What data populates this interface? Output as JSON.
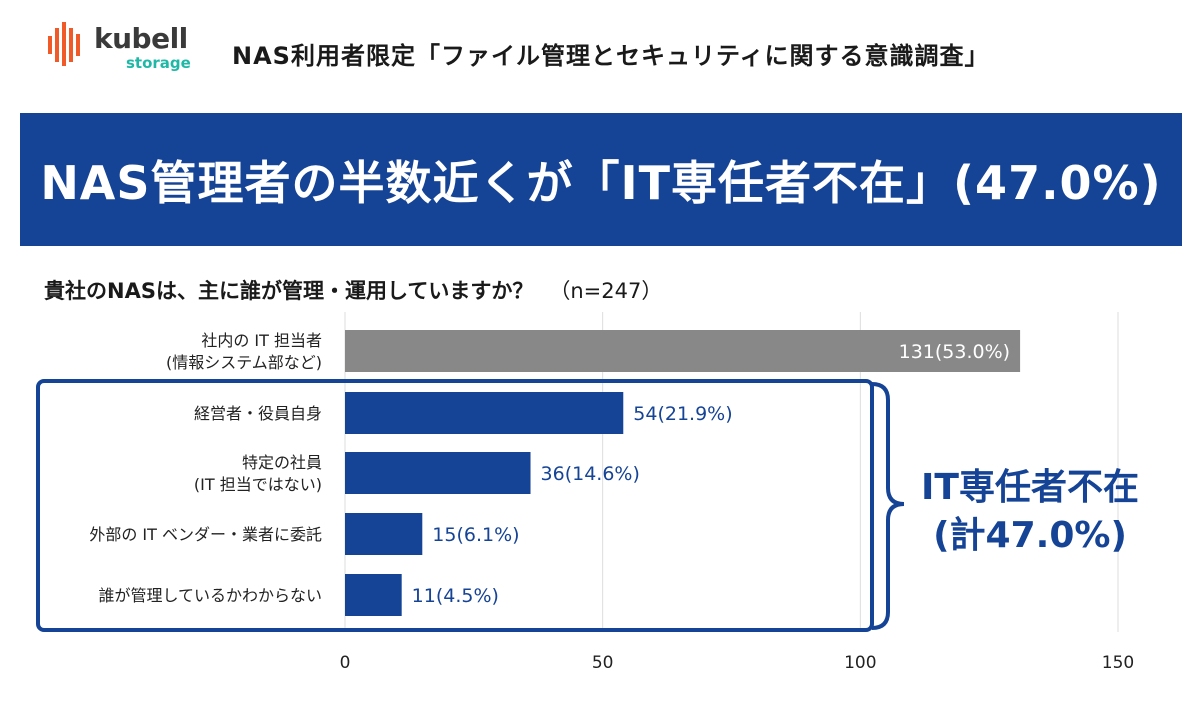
{
  "brand": {
    "logo_icon": "bars-logo-icon",
    "name": "kubell",
    "sub": "storage",
    "colors": {
      "bars": "#f05a28",
      "sub": "#1fb8a6"
    }
  },
  "survey_title": "NAS利用者限定「ファイル管理とセキュリティに関する意識調査」",
  "banner": {
    "text": "NAS管理者の半数近くが「IT専任者不在」(47.0%)",
    "background": "#154395"
  },
  "question": {
    "text": "貴社のNASは、主に誰が管理・運用していますか？",
    "n": "（n=247）"
  },
  "callout": {
    "line1": "IT専任者不在",
    "line2": "(計47.0%)"
  },
  "chart_data": {
    "type": "bar",
    "orientation": "horizontal",
    "categories": [
      [
        "社内の IT 担当者",
        "(情報システム部など)"
      ],
      [
        "経営者・役員自身"
      ],
      [
        "特定の社員",
        "(IT 担当ではない)"
      ],
      [
        "外部の IT ベンダー・業者に委託"
      ],
      [
        "誰が管理しているかわからない"
      ]
    ],
    "values": [
      131,
      54,
      36,
      15,
      11
    ],
    "labels": [
      "131(53.0%)",
      "54(21.9%)",
      "36(14.6%)",
      "15(6.1%)",
      "11(4.5%)"
    ],
    "bar_colors": [
      "#888888",
      "#154395",
      "#154395",
      "#154395",
      "#154395"
    ],
    "xlim": [
      0,
      150
    ],
    "xticks": [
      0,
      50,
      100,
      150
    ],
    "grid": true,
    "highlight_group": {
      "categories": [
        1,
        2,
        3,
        4
      ],
      "label": "IT専任者不在 (計47.0%)",
      "color": "#154395"
    }
  }
}
